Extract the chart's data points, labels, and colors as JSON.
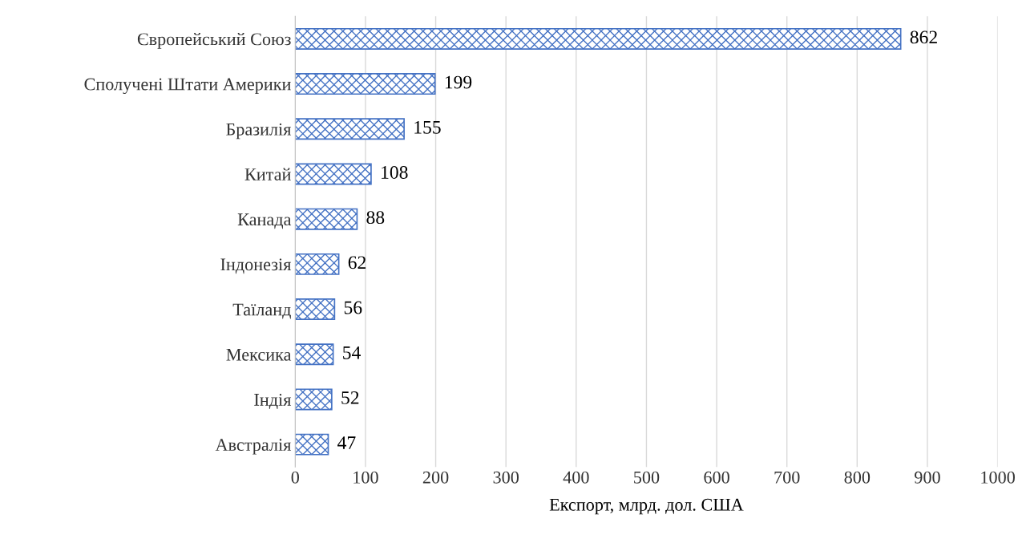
{
  "chart_data": {
    "type": "bar",
    "orientation": "horizontal",
    "xlabel": "Експорт, млрд. дол. США",
    "categories": [
      "Європейський Союз",
      "Сполучені Штати Америки",
      "Бразилія",
      "Китай",
      "Канада",
      "Індонезія",
      "Таїланд",
      "Мексика",
      "Індія",
      "Австралія"
    ],
    "values": [
      862,
      199,
      155,
      108,
      88,
      62,
      56,
      54,
      52,
      47
    ],
    "color": "#4472c4",
    "xlim": [
      0,
      1000
    ],
    "xticks": [
      0,
      100,
      200,
      300,
      400,
      500,
      600,
      700,
      800,
      900,
      1000
    ],
    "grid": "x",
    "data_labels": true
  }
}
